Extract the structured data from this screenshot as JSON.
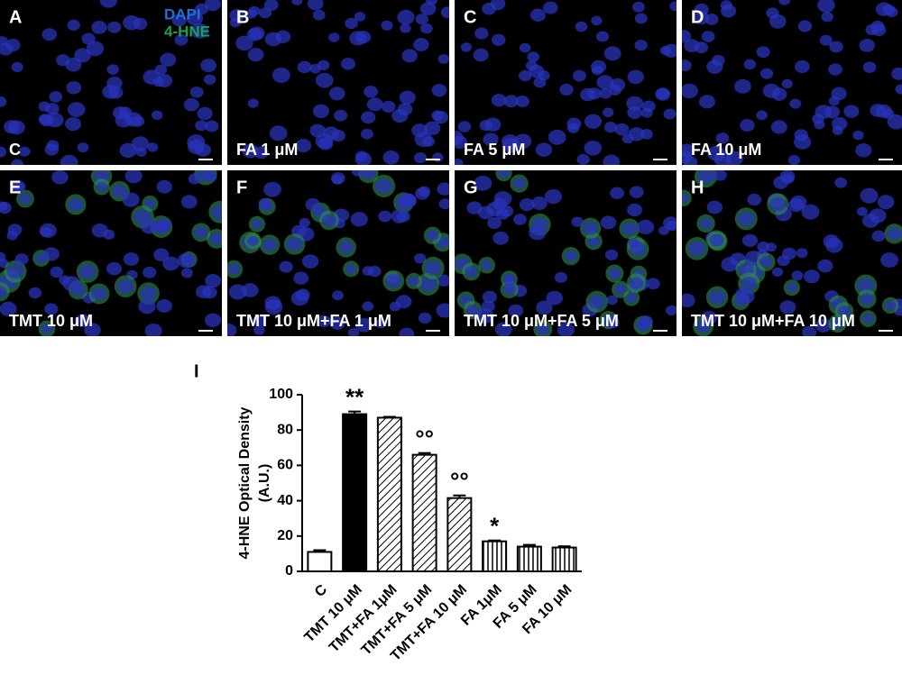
{
  "panels": [
    {
      "letter": "A",
      "label": "C"
    },
    {
      "letter": "B",
      "label": "FA 1 μM"
    },
    {
      "letter": "C",
      "label": "FA 5 μM"
    },
    {
      "letter": "D",
      "label": "FA 10 μM"
    },
    {
      "letter": "E",
      "label": "TMT 10 μM"
    },
    {
      "letter": "F",
      "label": "TMT 10 μM+FA 1 μM"
    },
    {
      "letter": "G",
      "label": "TMT 10 μM+FA 5 μM"
    },
    {
      "letter": "H",
      "label": "TMT 10 μM+FA 10 μM"
    }
  ],
  "stain_legend": [
    {
      "text": "DAPI",
      "color": "#1f6fd6"
    },
    {
      "text": "4-HNE",
      "color": "#1fa04a"
    }
  ],
  "chart_data": {
    "type": "bar",
    "panel_letter": "I",
    "ylabel": "4-HNE Optical Density",
    "ylabel_unit": "(A.U.)",
    "categories": [
      "C",
      "TMT 10 μM",
      "TMT+FA 1μM",
      "TMT+FA 5 μM",
      "TMT+FA 10 μM",
      "FA 1μM",
      "FA 5 μM",
      "FA 10 μM"
    ],
    "values": [
      11,
      89,
      87,
      66,
      41.5,
      17,
      14,
      13.5
    ],
    "errors": [
      1,
      1.5,
      0.5,
      1,
      1.5,
      0.5,
      1,
      0.7
    ],
    "fills": [
      "white",
      "black",
      "diagonal",
      "diagonal",
      "diagonal",
      "vertical",
      "vertical",
      "vertical"
    ],
    "value_annotations": [
      null,
      "**",
      null,
      "°°",
      "°°",
      "*",
      null,
      null
    ],
    "ylim": [
      0,
      100
    ],
    "yticks": [
      0,
      20,
      40,
      60,
      80,
      100
    ]
  }
}
